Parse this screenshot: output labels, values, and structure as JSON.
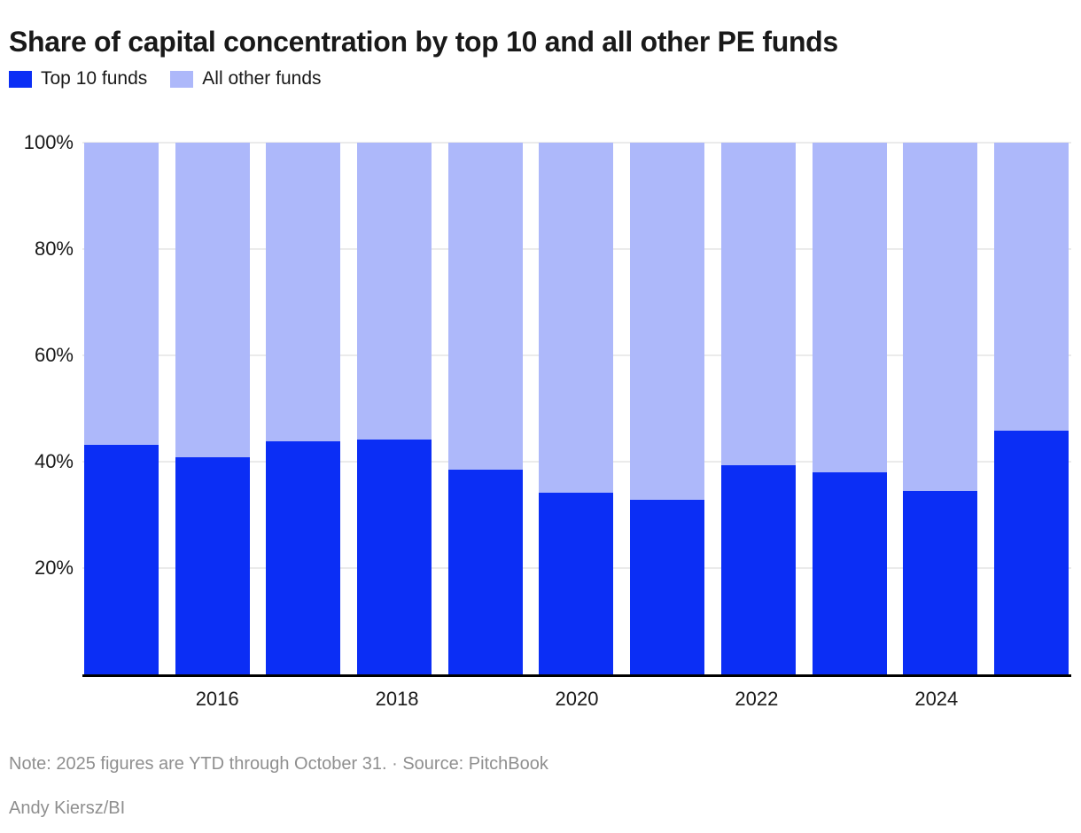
{
  "title": "Share of capital concentration by top 10 and all other PE funds",
  "legend": {
    "items": [
      {
        "label": "Top 10 funds",
        "color": "#0b2ef5"
      },
      {
        "label": "All other funds",
        "color": "#adb8fa"
      }
    ]
  },
  "chart_data": {
    "type": "bar",
    "stacked": true,
    "stack_unit": "percent",
    "title": "Share of capital concentration by top 10 and all other PE funds",
    "x": [
      "2015",
      "2016",
      "2017",
      "2018",
      "2019",
      "2020",
      "2021",
      "2022",
      "2023",
      "2024",
      "2025"
    ],
    "series": [
      {
        "name": "Top 10 funds",
        "color": "#0b2ef5",
        "values": [
          43.2,
          40.8,
          43.8,
          44.2,
          38.5,
          34.2,
          32.8,
          39.3,
          38.0,
          34.5,
          45.8
        ]
      },
      {
        "name": "All other funds",
        "color": "#adb8fa",
        "values": [
          56.8,
          59.2,
          56.2,
          55.8,
          61.5,
          65.8,
          67.2,
          60.7,
          62.0,
          65.5,
          54.2
        ]
      }
    ],
    "ylim": [
      0,
      100
    ],
    "yticks": [
      {
        "value": 20,
        "label": "20%"
      },
      {
        "value": 40,
        "label": "40%"
      },
      {
        "value": 60,
        "label": "60%"
      },
      {
        "value": 80,
        "label": "80%"
      },
      {
        "value": 100,
        "label": "100%"
      }
    ],
    "xticks": [
      "2016",
      "2018",
      "2020",
      "2022",
      "2024"
    ],
    "grid": true,
    "legend_position": "top-left",
    "colors": {
      "grid": "#ebebeb",
      "axis": "#000000",
      "tick_text": "#191919"
    }
  },
  "footer": {
    "note": "Note: 2025 figures are YTD through October 31. · Source: PitchBook",
    "credit": "Andy Kiersz/BI"
  }
}
